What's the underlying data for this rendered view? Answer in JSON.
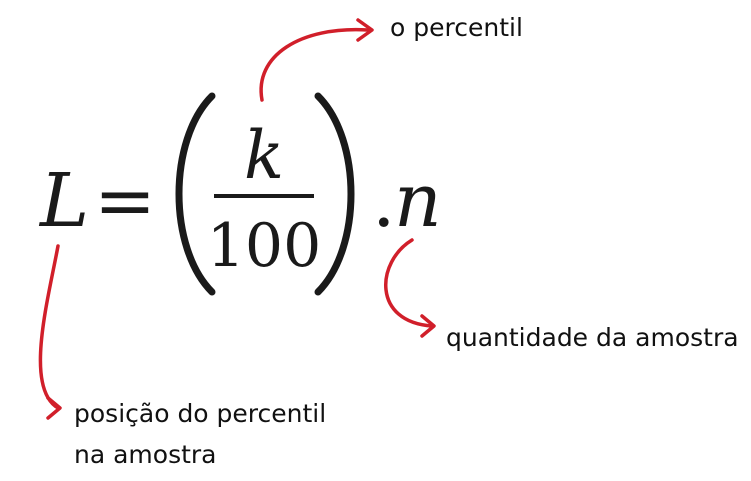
{
  "formula": {
    "lhs": "L",
    "equals": "=",
    "numerator": "k",
    "denominator": "100",
    "dot": ".",
    "multiplier": "n"
  },
  "annotations": {
    "percentile": "o percentil",
    "sample_size": "quantidade da amostra",
    "position_line1": "posição do percentil",
    "position_line2": "na amostra"
  },
  "colors": {
    "arrow": "#d11f2a",
    "text": "#111111"
  }
}
